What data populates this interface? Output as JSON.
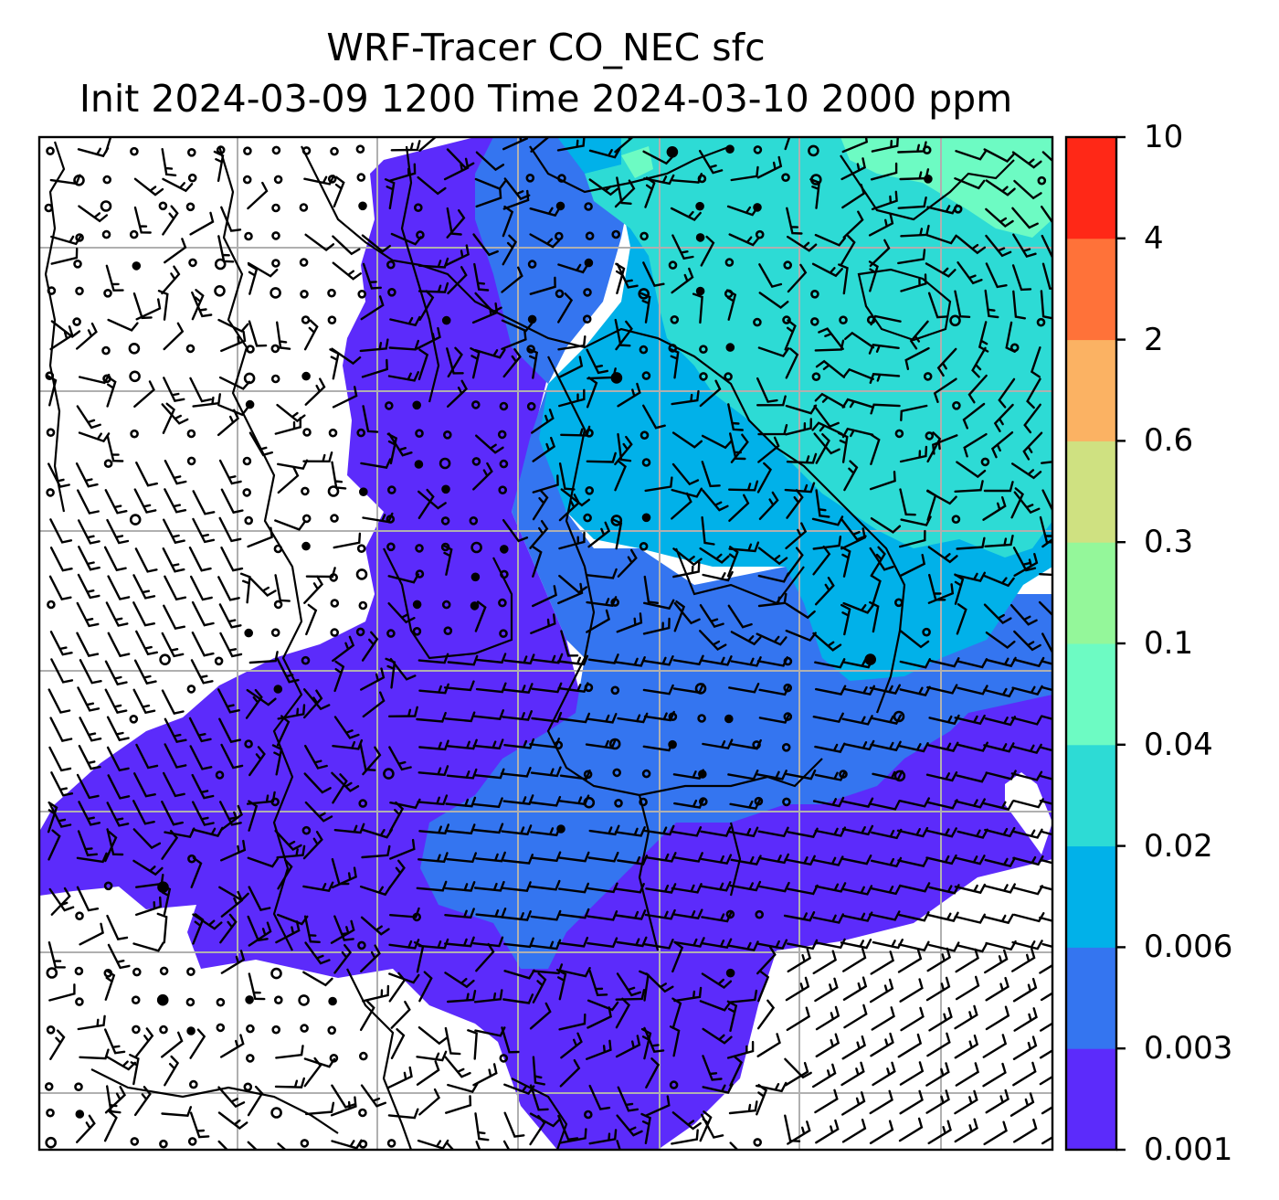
{
  "title": {
    "line1": "WRF-Tracer CO_NEC sfc",
    "line2": "Init 2024-03-09 1200 Time 2024-03-10 2000 ppm"
  },
  "colorbar": {
    "levels": [
      "0.001",
      "0.003",
      "0.006",
      "0.02",
      "0.04",
      "0.1",
      "0.3",
      "0.6",
      "2",
      "4",
      "10"
    ],
    "colors": [
      "#5c2bfb",
      "#3475f0",
      "#01b1e9",
      "#2ddbd5",
      "#6dfbc3",
      "#94f79a",
      "#cfe181",
      "#fbb263",
      "#ff7239",
      "#ff2817"
    ]
  },
  "map": {
    "background": "#ffffff",
    "gridline_color": "#b0b0b0",
    "coastline_color": "#000000",
    "wind_barb_color": "#000000"
  }
}
